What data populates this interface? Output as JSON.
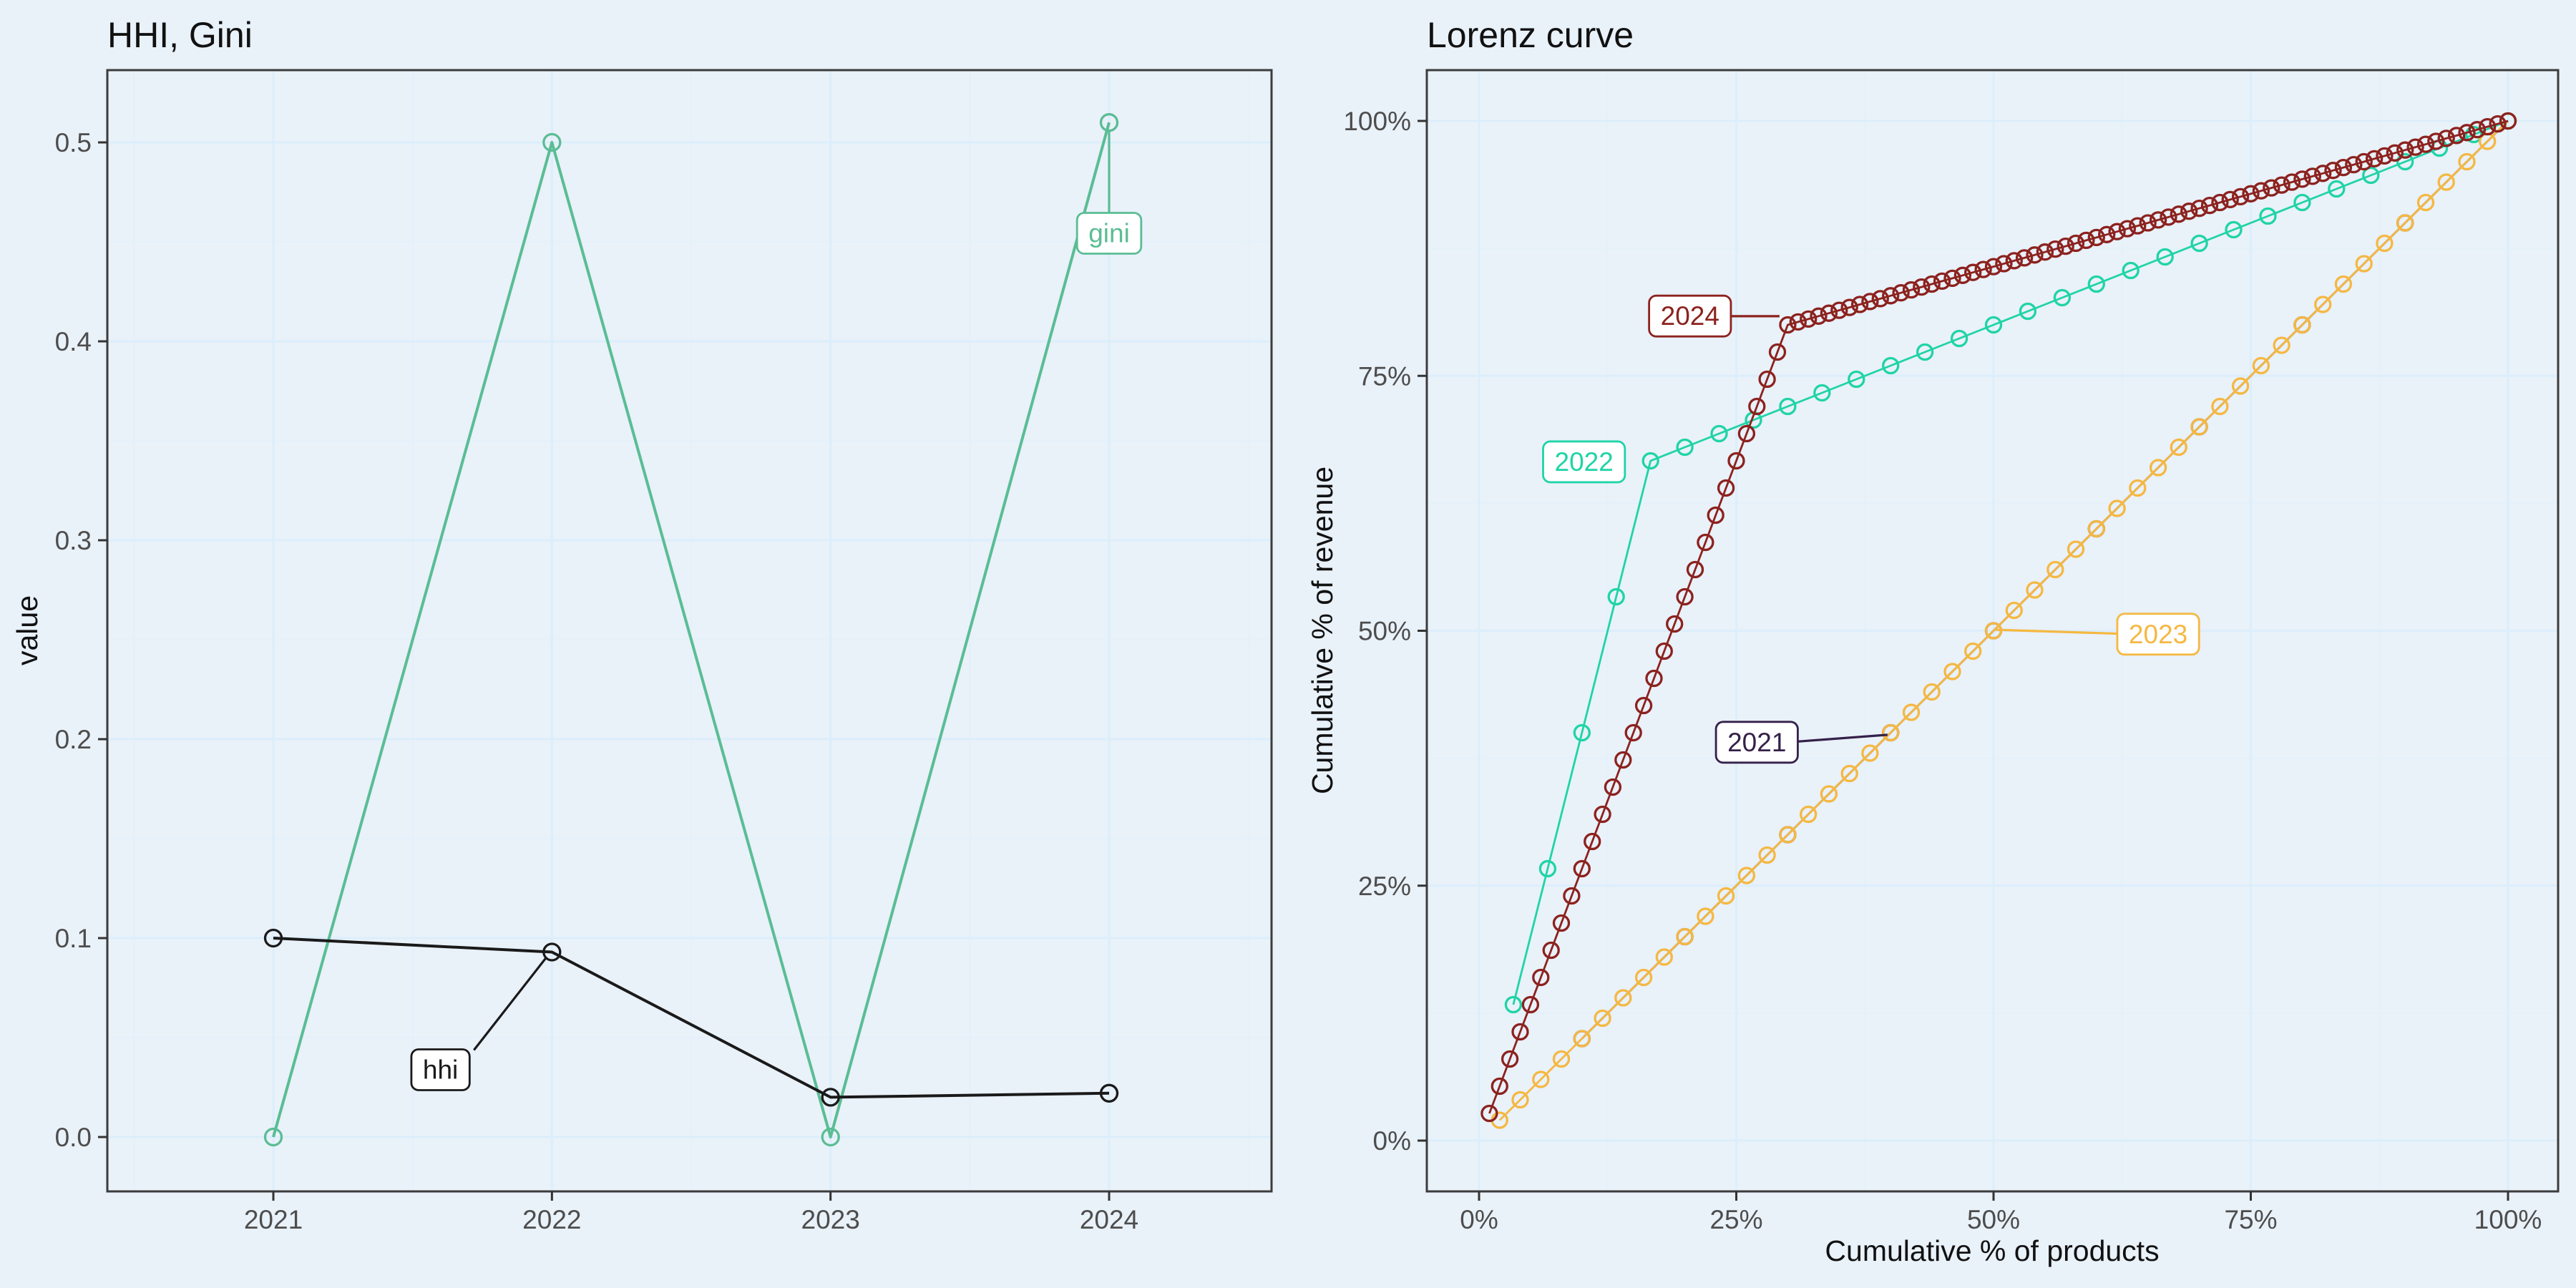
{
  "figure": {
    "background": "#E9F1F9",
    "panel_border_color": "#3C3C3C",
    "grid_major_color": "#DCEEFB",
    "grid_minor_color": "#E3F1FA",
    "tick_color": "#333333",
    "tick_label_color": "#4D4D4D",
    "annotation_box_fill": "#FFFFFF"
  },
  "chart_data": {
    "charts": [
      {
        "type": "line",
        "title": "HHI, Gini",
        "xlabel": "",
        "ylabel": "value",
        "x_tick_labels": [
          "2021",
          "2022",
          "2023",
          "2024"
        ],
        "x_tick_values": [
          2021,
          2022,
          2023,
          2024
        ],
        "x_minor": [
          2020.5,
          2021.5,
          2022.5,
          2023.5,
          2024.5
        ],
        "y_tick_labels": [
          "0.0",
          "0.1",
          "0.2",
          "0.3",
          "0.4",
          "0.5"
        ],
        "y_tick_values": [
          0,
          0.1,
          0.2,
          0.3,
          0.4,
          0.5
        ],
        "y_minor": [
          0.05,
          0.15,
          0.25,
          0.35,
          0.45
        ],
        "xlim": [
          2020.4,
          2024.59
        ],
        "ylim": [
          -0.027,
          0.536
        ],
        "grid": true,
        "legend": "none (direct labels)",
        "series": [
          {
            "name": "gini",
            "color": "#5ABD94",
            "x": [
              2021,
              2022,
              2023,
              2024
            ],
            "y": [
              0.0,
              0.5,
              0.0,
              0.51
            ]
          },
          {
            "name": "hhi",
            "color": "#1A1A1A",
            "x": [
              2021,
              2022,
              2023,
              2024
            ],
            "y": [
              0.1,
              0.093,
              0.02,
              0.022
            ]
          }
        ],
        "annotations": [
          {
            "text": "hhi",
            "color": "#1A1A1A",
            "x": 2021.6,
            "y": 0.034,
            "leader": [
              [
                2021.72,
                0.0437
              ],
              [
                2021.98,
                0.0903
              ]
            ]
          },
          {
            "text": "gini",
            "color": "#5ABD94",
            "x": 2024.0,
            "y": 0.4545,
            "leader": [
              [
                2024,
                0.462
              ],
              [
                2024,
                0.5055
              ]
            ]
          }
        ]
      },
      {
        "type": "line",
        "title": "Lorenz curve",
        "xlabel": "Cumulative % of products",
        "ylabel": "Cumulative % of revenue",
        "x_tick_labels": [
          "0%",
          "25%",
          "50%",
          "75%",
          "100%"
        ],
        "x_tick_values": [
          0,
          25,
          50,
          75,
          100
        ],
        "x_minor": [
          12.5,
          37.5,
          62.5,
          87.5
        ],
        "y_tick_labels": [
          "0%",
          "25%",
          "50%",
          "75%",
          "100%"
        ],
        "y_tick_values": [
          0,
          25,
          50,
          75,
          100
        ],
        "y_minor": [
          12.5,
          37.5,
          62.5,
          87.5
        ],
        "xlim": [
          -5.1,
          104.9
        ],
        "ylim": [
          -5.0,
          105.0
        ],
        "grid": true,
        "legend": "none (direct labels)",
        "series": [
          {
            "name": "2021",
            "color": "#35214A",
            "n_products": 10,
            "lorenz_vertices": [
              [
                10,
                10
              ],
              [
                100,
                100
              ]
            ]
          },
          {
            "name": "2022",
            "color": "#1FD4A6",
            "n_products": 30,
            "lorenz_vertices": [
              [
                3.3333,
                13.3333
              ],
              [
                16.6667,
                66.6667
              ],
              [
                100,
                100
              ]
            ]
          },
          {
            "name": "2023",
            "color": "#F5B841",
            "n_products": 50,
            "lorenz_vertices": [
              [
                2,
                2
              ],
              [
                100,
                100
              ]
            ]
          },
          {
            "name": "2024",
            "color": "#8C221E",
            "n_products": 100,
            "lorenz_vertices": [
              [
                1,
                2.6667
              ],
              [
                30,
                80
              ],
              [
                100,
                100
              ]
            ]
          }
        ],
        "annotations": [
          {
            "text": "2022",
            "color": "#1FD4A6",
            "x": 10.2,
            "y": 66.6
          },
          {
            "text": "2024",
            "color": "#8C221E",
            "x": 20.5,
            "y": 80.9,
            "leader": [
              [
                24.5,
                80.85
              ],
              [
                29.2,
                80.85
              ]
            ]
          },
          {
            "text": "2023",
            "color": "#F5B841",
            "x": 66.0,
            "y": 49.7,
            "leader": [
              [
                62.5,
                49.7
              ],
              [
                50.2,
                50.1
              ]
            ]
          },
          {
            "text": "2021",
            "color": "#35214A",
            "x": 27.0,
            "y": 39.1,
            "leader": [
              [
                30.5,
                39.1
              ],
              [
                39.7,
                39.8
              ]
            ]
          }
        ]
      }
    ]
  }
}
